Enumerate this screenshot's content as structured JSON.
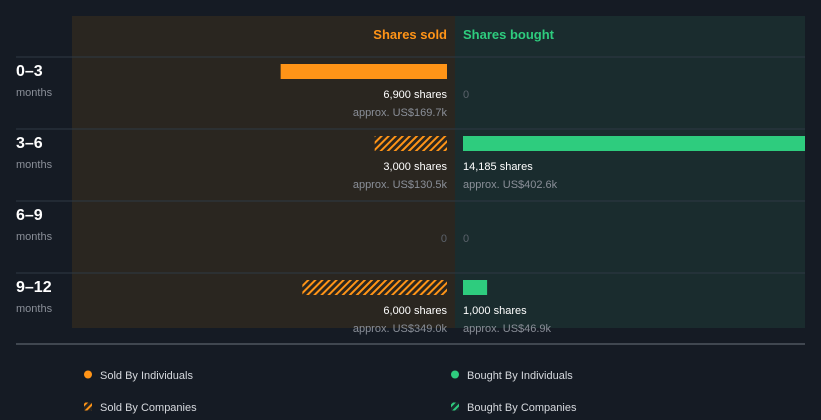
{
  "chart_data": {
    "type": "bar",
    "orientation": "horizontal-diverging",
    "headers": {
      "sold": "Shares sold",
      "bought": "Shares bought"
    },
    "periods": [
      {
        "range": "0–3",
        "unit": "months",
        "sold": {
          "type": "individual",
          "shares": 6900,
          "shares_label": "6,900 shares",
          "value_label": "approx. US$169.7k"
        },
        "bought": {
          "type": "none",
          "shares": 0,
          "zero_label": "0"
        }
      },
      {
        "range": "3–6",
        "unit": "months",
        "sold": {
          "type": "company",
          "shares": 3000,
          "shares_label": "3,000 shares",
          "value_label": "approx. US$130.5k"
        },
        "bought": {
          "type": "individual",
          "shares": 14185,
          "shares_label": "14,185 shares",
          "value_label": "approx. US$402.6k"
        }
      },
      {
        "range": "6–9",
        "unit": "months",
        "sold": {
          "type": "none",
          "shares": 0,
          "zero_label": "0"
        },
        "bought": {
          "type": "none",
          "shares": 0,
          "zero_label": "0"
        }
      },
      {
        "range": "9–12",
        "unit": "months",
        "sold": {
          "type": "company",
          "shares": 6000,
          "shares_label": "6,000 shares",
          "value_label": "approx. US$349.0k"
        },
        "bought": {
          "type": "individual",
          "shares": 1000,
          "shares_label": "1,000 shares",
          "value_label": "approx. US$46.9k"
        }
      }
    ],
    "legend": [
      {
        "label": "Sold By Individuals",
        "kind": "sold",
        "style": "solid"
      },
      {
        "label": "Bought By Individuals",
        "kind": "bought",
        "style": "solid"
      },
      {
        "label": "Sold By Companies",
        "kind": "sold",
        "style": "hatched"
      },
      {
        "label": "Bought By Companies",
        "kind": "bought",
        "style": "hatched"
      }
    ],
    "legend_placement": "bottom",
    "colors": {
      "sold": "#ff9417",
      "bought": "#2ecc7e",
      "sold_panel": "#2a2620",
      "bought_panel": "#1a2c2e",
      "background": "#151b24",
      "text": "#ffffff",
      "muted": "#8a8f98"
    }
  }
}
